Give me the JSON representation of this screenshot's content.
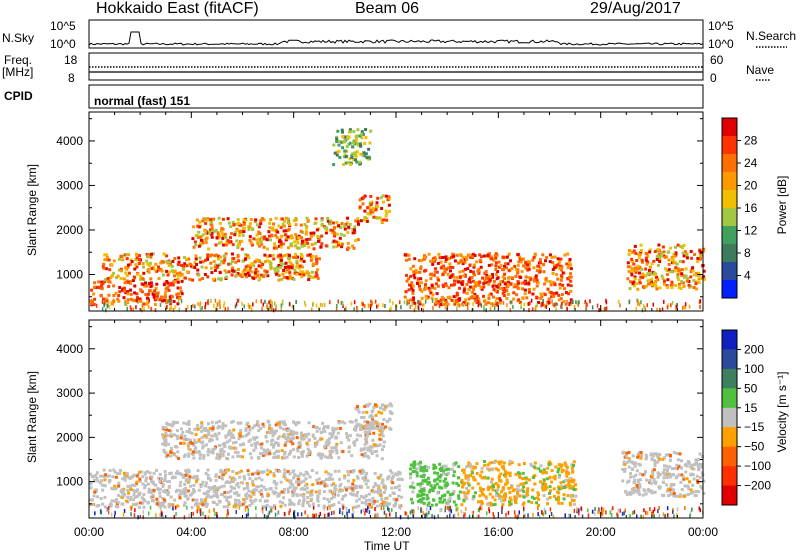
{
  "header": {
    "title": "Hokkaido East (fitACF)",
    "beam": "Beam 06",
    "date": "29/Aug/2017"
  },
  "top_panels": {
    "nsky_label": "N.Sky",
    "nsky_ticks": [
      "10^5",
      "10^0"
    ],
    "nsearch_label": "N.Search",
    "nsearch_ticks": [
      "10^5",
      "10^0"
    ],
    "freq_label_1": "Freq.",
    "freq_label_2": "[MHz]",
    "freq_ticks": [
      "18",
      "8"
    ],
    "nave_label": "Nave",
    "nave_ticks": [
      "60",
      "0"
    ],
    "cpid_label": "CPID",
    "cpid_value": "normal (fast) 151"
  },
  "chart_data": [
    {
      "type": "heatmap",
      "panel": "power",
      "ylabel": "Slant Range [km]",
      "ylim": [
        180,
        4650
      ],
      "yticks": [
        1000,
        2000,
        3000,
        4000
      ],
      "colorbar": {
        "label": "Power [dB]",
        "ticks": [
          "28",
          "24",
          "20",
          "16",
          "12",
          "8",
          "4"
        ],
        "colors": [
          "#e00000",
          "#ff3300",
          "#ff7000",
          "#ff9900",
          "#f0c000",
          "#a0c840",
          "#40a060",
          "#3c7c5c",
          "#2a4a9a",
          "#0020ff"
        ]
      },
      "regions": [
        {
          "t0": 0.0,
          "t1": 3.6,
          "r0": 350,
          "r1": 900,
          "level": "high"
        },
        {
          "t0": 0.5,
          "t1": 9.0,
          "r0": 900,
          "r1": 1500,
          "level": "mid"
        },
        {
          "t0": 4.0,
          "t1": 10.5,
          "r0": 1600,
          "r1": 2300,
          "level": "mid"
        },
        {
          "t0": 10.5,
          "t1": 11.7,
          "r0": 2200,
          "r1": 2800,
          "level": "mid"
        },
        {
          "t0": 12.3,
          "t1": 18.8,
          "r0": 350,
          "r1": 1500,
          "level": "high"
        },
        {
          "t0": 21.0,
          "t1": 24.0,
          "r0": 700,
          "r1": 1700,
          "level": "mid"
        },
        {
          "t0": 9.5,
          "t1": 11.0,
          "r0": 3500,
          "r1": 4300,
          "level": "low"
        }
      ]
    },
    {
      "type": "heatmap",
      "panel": "velocity",
      "ylabel": "Slant Range [km]",
      "ylim": [
        180,
        4650
      ],
      "yticks": [
        1000,
        2000,
        3000,
        4000
      ],
      "colorbar": {
        "label": "Velocity [m s⁻¹]",
        "ticks": [
          "200",
          "100",
          "50",
          "15",
          "−15",
          "−50",
          "−100",
          "−200"
        ],
        "colors": [
          "#1020c0",
          "#2a4a9a",
          "#3c8060",
          "#50c040",
          "#c0c0c0",
          "#ffa000",
          "#ff6000",
          "#ff3000",
          "#e00000"
        ]
      },
      "regions": [
        {
          "t0": 0.0,
          "t1": 12.2,
          "r0": 450,
          "r1": 1300,
          "level": "grey"
        },
        {
          "t0": 2.8,
          "t1": 11.5,
          "r0": 1550,
          "r1": 2400,
          "level": "grey"
        },
        {
          "t0": 10.3,
          "t1": 11.8,
          "r0": 2200,
          "r1": 2800,
          "level": "grey"
        },
        {
          "t0": 12.5,
          "t1": 14.5,
          "r0": 500,
          "r1": 1500,
          "level": "green"
        },
        {
          "t0": 14.5,
          "t1": 19.0,
          "r0": 500,
          "r1": 1500,
          "level": "orange"
        },
        {
          "t0": 20.8,
          "t1": 24.0,
          "r0": 700,
          "r1": 1700,
          "level": "grey"
        }
      ]
    }
  ],
  "x_axis": {
    "ticks": [
      "00:00",
      "04:00",
      "08:00",
      "12:00",
      "16:00",
      "20:00",
      "00:00"
    ],
    "label": "Time UT"
  }
}
